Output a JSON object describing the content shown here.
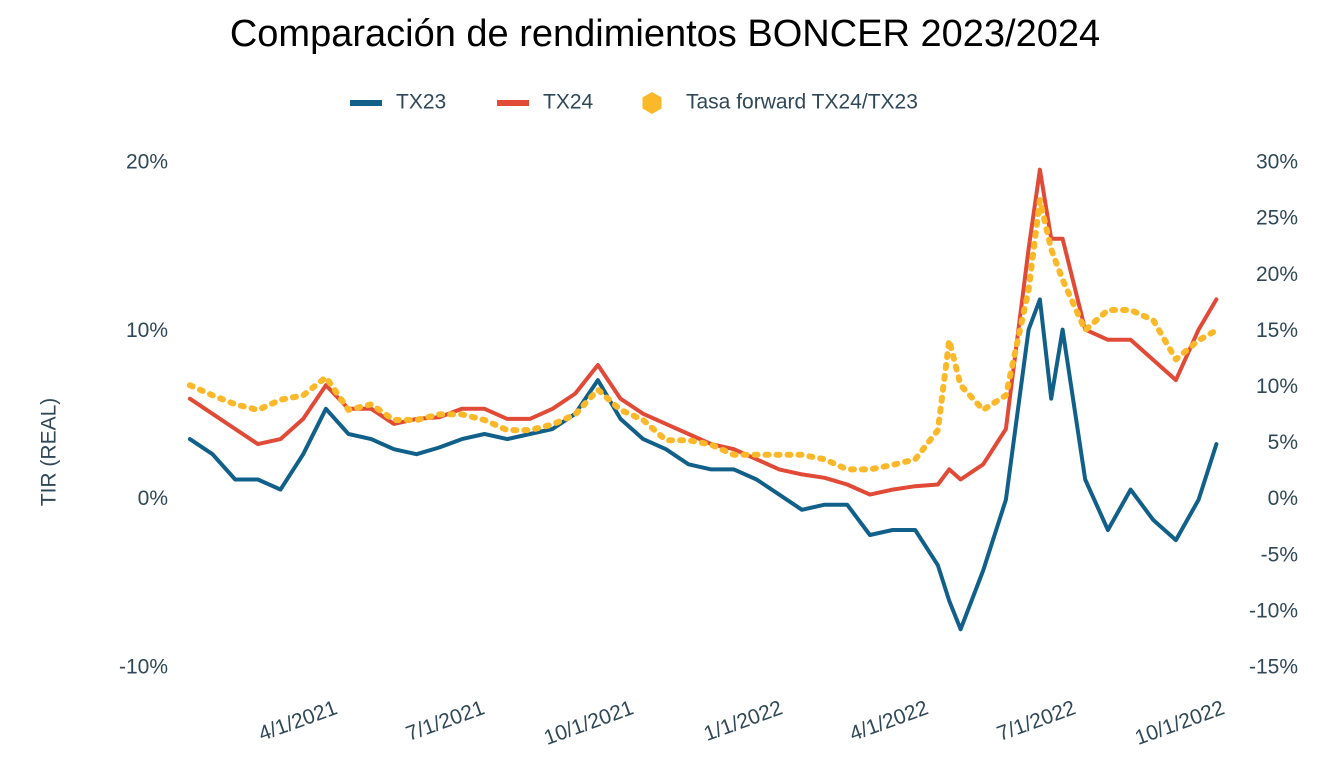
{
  "chart_data": {
    "type": "line",
    "title": "Comparación de rendimientos BONCER 2023/2024",
    "y_label": "TIR (REAL)",
    "legend": "top",
    "x": [
      "2021-01-04",
      "2021-01-18",
      "2021-02-01",
      "2021-02-15",
      "2021-03-01",
      "2021-03-15",
      "2021-03-29",
      "2021-04-12",
      "2021-04-26",
      "2021-05-10",
      "2021-05-24",
      "2021-06-07",
      "2021-06-21",
      "2021-07-05",
      "2021-07-19",
      "2021-08-02",
      "2021-08-16",
      "2021-08-30",
      "2021-09-13",
      "2021-09-27",
      "2021-10-11",
      "2021-10-25",
      "2021-11-08",
      "2021-11-22",
      "2021-12-06",
      "2021-12-20",
      "2022-01-03",
      "2022-01-17",
      "2022-01-31",
      "2022-02-14",
      "2022-02-28",
      "2022-03-14",
      "2022-03-28",
      "2022-04-11",
      "2022-04-18",
      "2022-04-25",
      "2022-05-09",
      "2022-05-23",
      "2022-06-06",
      "2022-06-13",
      "2022-06-20",
      "2022-06-27",
      "2022-07-11",
      "2022-07-25",
      "2022-08-08",
      "2022-08-22",
      "2022-09-05",
      "2022-09-19",
      "2022-09-30"
    ],
    "series": [
      {
        "name": "TX23",
        "color": "#11608a",
        "axis": "y",
        "values": [
          3.6,
          2.7,
          1.2,
          1.2,
          0.6,
          2.7,
          5.4,
          3.9,
          3.6,
          3.0,
          2.7,
          3.1,
          3.6,
          3.9,
          3.6,
          3.9,
          4.2,
          5.1,
          7.1,
          4.8,
          3.6,
          3.0,
          2.1,
          1.8,
          1.8,
          1.2,
          0.3,
          -0.6,
          -0.3,
          -0.3,
          -2.1,
          -1.8,
          -1.8,
          -3.9,
          -6.0,
          -7.7,
          -4.2,
          0.0,
          10.1,
          11.9,
          6.0,
          10.1,
          1.2,
          -1.8,
          0.6,
          -1.2,
          -2.4,
          0.0,
          3.3
        ]
      },
      {
        "name": "TX24",
        "color": "#e04a36",
        "axis": "y",
        "values": [
          6.0,
          5.1,
          4.2,
          3.3,
          3.6,
          4.8,
          6.8,
          5.4,
          5.4,
          4.5,
          4.8,
          4.9,
          5.4,
          5.4,
          4.8,
          4.8,
          5.4,
          6.3,
          8.0,
          6.0,
          5.1,
          4.5,
          3.9,
          3.3,
          3.0,
          2.4,
          1.8,
          1.5,
          1.3,
          0.9,
          0.3,
          0.6,
          0.8,
          0.9,
          1.8,
          1.2,
          2.1,
          4.2,
          14.9,
          19.6,
          15.5,
          15.5,
          10.1,
          9.5,
          9.5,
          8.3,
          7.1,
          10.1,
          11.9
        ]
      },
      {
        "name": "Tasa forward TX24/TX23",
        "color": "#fbb829",
        "axis": "y2",
        "values": [
          10.2,
          9.3,
          8.5,
          8.0,
          8.9,
          9.3,
          10.9,
          8.0,
          8.5,
          7.1,
          7.1,
          7.6,
          7.6,
          7.1,
          6.2,
          6.2,
          6.7,
          7.6,
          9.8,
          8.0,
          7.1,
          5.3,
          5.3,
          4.9,
          4.0,
          4.0,
          4.0,
          4.0,
          3.6,
          2.7,
          2.7,
          3.1,
          3.6,
          6.2,
          14.2,
          10.2,
          8.0,
          9.3,
          18.7,
          26.7,
          22.3,
          19.6,
          15.1,
          16.9,
          16.9,
          16.0,
          12.5,
          14.2,
          15.1
        ]
      }
    ],
    "xlim": [
      "2021-01-01",
      "2022-10-01"
    ],
    "xticks": [
      {
        "value": "2021-04-01",
        "label": "4/1/2021"
      },
      {
        "value": "2021-07-01",
        "label": "7/1/2021"
      },
      {
        "value": "2021-10-01",
        "label": "10/1/2021"
      },
      {
        "value": "2022-01-01",
        "label": "1/1/2022"
      },
      {
        "value": "2022-04-01",
        "label": "4/1/2022"
      },
      {
        "value": "2022-07-01",
        "label": "7/1/2022"
      },
      {
        "value": "2022-10-01",
        "label": "10/1/2022"
      }
    ],
    "ylim": [
      -10,
      20
    ],
    "yticks": [
      {
        "value": -10,
        "label": "-10%"
      },
      {
        "value": 0,
        "label": "0%"
      },
      {
        "value": 10,
        "label": "10%"
      },
      {
        "value": 20,
        "label": "20%"
      }
    ],
    "y2lim": [
      -15,
      30
    ],
    "y2ticks": [
      {
        "value": -15,
        "label": "-15%"
      },
      {
        "value": -10,
        "label": "-10%"
      },
      {
        "value": -5,
        "label": "-5%"
      },
      {
        "value": 0,
        "label": "0%"
      },
      {
        "value": 5,
        "label": "5%"
      },
      {
        "value": 10,
        "label": "10%"
      },
      {
        "value": 15,
        "label": "15%"
      },
      {
        "value": 20,
        "label": "20%"
      },
      {
        "value": 25,
        "label": "25%"
      },
      {
        "value": 30,
        "label": "30%"
      }
    ]
  }
}
